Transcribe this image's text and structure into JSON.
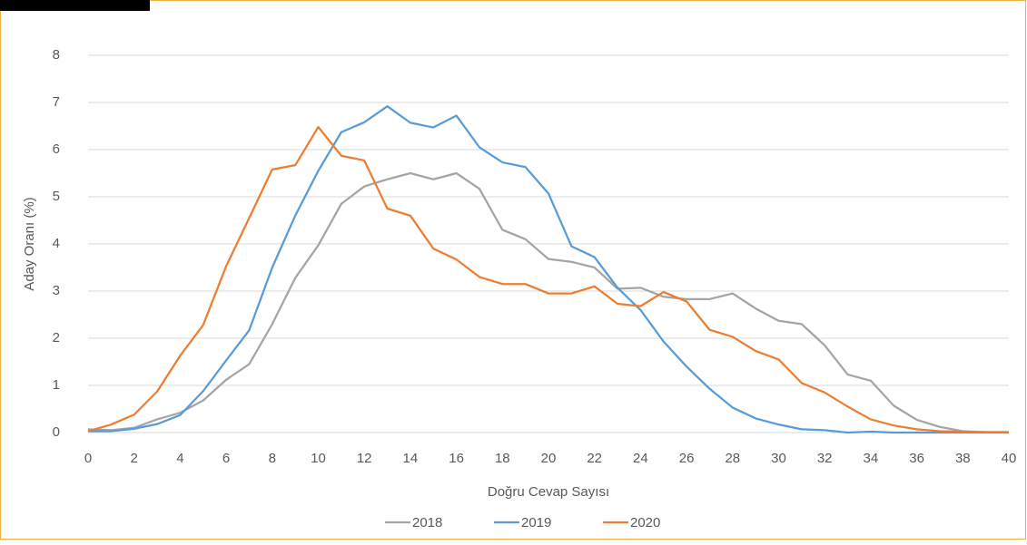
{
  "chart_data": {
    "type": "line",
    "x_label": "Doğru Cevap Sayısı",
    "y_label": "Aday Oranı (%)",
    "x": [
      0,
      1,
      2,
      3,
      4,
      5,
      6,
      7,
      8,
      9,
      10,
      11,
      12,
      13,
      14,
      15,
      16,
      17,
      18,
      19,
      20,
      21,
      22,
      23,
      24,
      25,
      26,
      27,
      28,
      29,
      30,
      31,
      32,
      33,
      34,
      35,
      36,
      37,
      38,
      39,
      40
    ],
    "xlim": [
      0,
      40
    ],
    "xticks": [
      0,
      2,
      4,
      6,
      8,
      10,
      12,
      14,
      16,
      18,
      20,
      22,
      24,
      26,
      28,
      30,
      32,
      34,
      36,
      38,
      40
    ],
    "ylim": [
      0,
      8
    ],
    "yticks": [
      0,
      1,
      2,
      3,
      4,
      5,
      6,
      7,
      8
    ],
    "grid": true,
    "legend": "bottom",
    "series": [
      {
        "name": "2018",
        "color": "#a5a5a5",
        "values": [
          0.07,
          0.05,
          0.1,
          0.28,
          0.42,
          0.68,
          1.12,
          1.45,
          2.3,
          3.28,
          3.97,
          4.85,
          5.22,
          5.37,
          5.5,
          5.37,
          5.5,
          5.17,
          4.3,
          4.1,
          3.68,
          3.62,
          3.5,
          3.05,
          3.07,
          2.88,
          2.83,
          2.83,
          2.95,
          2.63,
          2.37,
          2.3,
          1.85,
          1.23,
          1.1,
          0.57,
          0.27,
          0.12,
          0.03,
          0.01,
          0.01
        ]
      },
      {
        "name": "2019",
        "color": "#5b9bd5",
        "values": [
          0.03,
          0.03,
          0.08,
          0.18,
          0.37,
          0.88,
          1.53,
          2.17,
          3.5,
          4.6,
          5.55,
          6.37,
          6.58,
          6.92,
          6.57,
          6.47,
          6.72,
          6.05,
          5.73,
          5.63,
          5.07,
          3.95,
          3.72,
          3.07,
          2.6,
          1.93,
          1.4,
          0.93,
          0.53,
          0.3,
          0.17,
          0.07,
          0.05,
          0.0,
          0.02,
          0.0,
          0.0,
          0.0,
          0.0,
          0.0,
          0.0
        ]
      },
      {
        "name": "2020",
        "color": "#ed7d31",
        "values": [
          0.03,
          0.17,
          0.38,
          0.87,
          1.63,
          2.28,
          3.53,
          4.55,
          5.58,
          5.67,
          6.48,
          5.87,
          5.77,
          4.75,
          4.6,
          3.9,
          3.67,
          3.3,
          3.15,
          3.15,
          2.95,
          2.95,
          3.1,
          2.73,
          2.68,
          2.98,
          2.78,
          2.18,
          2.03,
          1.73,
          1.55,
          1.05,
          0.85,
          0.55,
          0.28,
          0.15,
          0.07,
          0.03,
          0.02,
          0.01,
          0.01
        ]
      }
    ]
  }
}
